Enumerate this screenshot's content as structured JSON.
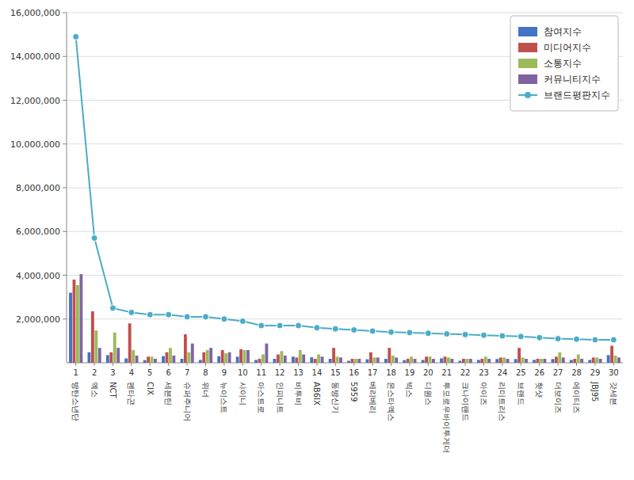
{
  "chart_data": {
    "type": "bar",
    "categories": [
      "1",
      "2",
      "3",
      "4",
      "5",
      "6",
      "7",
      "8",
      "9",
      "10",
      "11",
      "12",
      "13",
      "14",
      "15",
      "16",
      "17",
      "18",
      "19",
      "20",
      "21",
      "22",
      "23",
      "24",
      "25",
      "26",
      "27",
      "28",
      "29",
      "30"
    ],
    "annotations": [
      "방탄소년단",
      "엑소",
      "NCT",
      "펜타곤",
      "CIX",
      "세븐틴",
      "슈퍼주니어",
      "위너",
      "뉴이스트",
      "샤이니",
      "아스트로",
      "인피니트",
      "비투비",
      "AB6IX",
      "동방신기",
      "5959",
      "베리베리",
      "몬스타엑스",
      "빅스",
      "디원스",
      "투모로우바이투게더",
      "크나이랜드",
      "아이즈",
      "리미트리스",
      "브랜드",
      "핫샷",
      "더보이즈",
      "에이티즈",
      "JBJ95",
      "갓세븐"
    ],
    "series": [
      {
        "name": "참여지수",
        "type": "bar",
        "color": "#4472c4",
        "values": [
          3200000,
          480000,
          350000,
          200000,
          120000,
          300000,
          180000,
          130000,
          300000,
          280000,
          130000,
          180000,
          280000,
          250000,
          180000,
          90000,
          160000,
          180000,
          120000,
          130000,
          200000,
          90000,
          130000,
          170000,
          170000,
          130000,
          170000,
          130000,
          130000,
          350000
        ]
      },
      {
        "name": "미디어지수",
        "type": "bar",
        "color": "#c0504d",
        "values": [
          3800000,
          2350000,
          480000,
          1800000,
          280000,
          480000,
          1300000,
          480000,
          580000,
          620000,
          180000,
          380000,
          240000,
          180000,
          680000,
          180000,
          480000,
          680000,
          180000,
          280000,
          280000,
          180000,
          180000,
          240000,
          680000,
          180000,
          280000,
          180000,
          240000,
          780000
        ]
      },
      {
        "name": "소통지수",
        "type": "bar",
        "color": "#9bbb59",
        "values": [
          3550000,
          1480000,
          1380000,
          580000,
          280000,
          680000,
          480000,
          580000,
          430000,
          580000,
          380000,
          530000,
          580000,
          380000,
          280000,
          180000,
          240000,
          330000,
          280000,
          280000,
          240000,
          180000,
          280000,
          240000,
          240000,
          180000,
          480000,
          380000,
          240000,
          330000
        ]
      },
      {
        "name": "커뮤니티지수",
        "type": "bar",
        "color": "#8064a2",
        "values": [
          4050000,
          680000,
          680000,
          330000,
          180000,
          330000,
          880000,
          680000,
          480000,
          580000,
          880000,
          330000,
          380000,
          280000,
          240000,
          180000,
          240000,
          240000,
          180000,
          180000,
          180000,
          180000,
          180000,
          180000,
          180000,
          180000,
          240000,
          180000,
          180000,
          240000
        ]
      },
      {
        "name": "브랜드평판지수",
        "type": "line",
        "color": "#4bacc6",
        "marker": "circle",
        "values": [
          14900000,
          5700000,
          2500000,
          2300000,
          2200000,
          2200000,
          2100000,
          2100000,
          2000000,
          1900000,
          1700000,
          1700000,
          1700000,
          1600000,
          1550000,
          1500000,
          1450000,
          1400000,
          1380000,
          1350000,
          1320000,
          1290000,
          1260000,
          1230000,
          1200000,
          1150000,
          1100000,
          1080000,
          1050000,
          1050000
        ]
      }
    ],
    "ylim": [
      0,
      16000000
    ],
    "yticks": [
      {
        "value": 2000000,
        "label": "2,000,000"
      },
      {
        "value": 4000000,
        "label": "4,000,000"
      },
      {
        "value": 6000000,
        "label": "6,000,000"
      },
      {
        "value": 8000000,
        "label": "8,000,000"
      },
      {
        "value": 10000000,
        "label": "10,000,000"
      },
      {
        "value": 12000000,
        "label": "12,000,000"
      },
      {
        "value": 14000000,
        "label": "14,000,000"
      },
      {
        "value": 16000000,
        "label": "16,000,000"
      }
    ],
    "grid": true,
    "legend": "upper right"
  }
}
